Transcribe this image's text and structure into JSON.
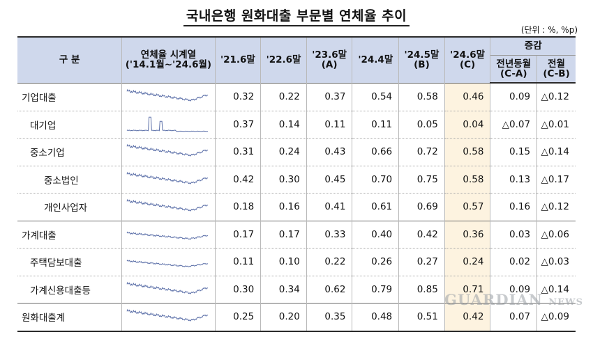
{
  "title": "국내은행 원화대출 부문별 연체율 추이",
  "unit": "(단위 : %, %p)",
  "headers": {
    "category": "구  분",
    "series_line1": "연체율 시계열",
    "series_line2": "('14.1월~'24.6월)",
    "p1": "'21.6말",
    "p2": "'22.6말",
    "p3_line1": "'23.6말",
    "p3_line2": "(A)",
    "p4": "'24.4말",
    "p5_line1": "'24.5말",
    "p5_line2": "(B)",
    "p6_line1": "'24.6말",
    "p6_line2": "(C)",
    "change": "증감",
    "yoy_line1": "전년동월",
    "yoy_line2": "(C-A)",
    "mom_line1": "전월",
    "mom_line2": "(C-B)"
  },
  "rows": [
    {
      "label": "기업대출",
      "values": [
        "0.32",
        "0.22",
        "0.37",
        "0.54",
        "0.58",
        "0.46"
      ],
      "yoy": "0.09",
      "mom": "△0.12"
    },
    {
      "label": "대기업",
      "values": [
        "0.37",
        "0.14",
        "0.11",
        "0.11",
        "0.05",
        "0.04"
      ],
      "yoy": "△0.07",
      "mom": "△0.01"
    },
    {
      "label": "중소기업",
      "values": [
        "0.31",
        "0.24",
        "0.43",
        "0.66",
        "0.72",
        "0.58"
      ],
      "yoy": "0.15",
      "mom": "△0.14"
    },
    {
      "label": "중소법인",
      "values": [
        "0.42",
        "0.30",
        "0.45",
        "0.70",
        "0.75",
        "0.58"
      ],
      "yoy": "0.13",
      "mom": "△0.17"
    },
    {
      "label": "개인사업자",
      "values": [
        "0.18",
        "0.16",
        "0.41",
        "0.61",
        "0.69",
        "0.57"
      ],
      "yoy": "0.16",
      "mom": "△0.12"
    },
    {
      "label": "가계대출",
      "values": [
        "0.17",
        "0.17",
        "0.33",
        "0.40",
        "0.42",
        "0.36"
      ],
      "yoy": "0.03",
      "mom": "△0.06"
    },
    {
      "label": "주택담보대출",
      "values": [
        "0.11",
        "0.10",
        "0.22",
        "0.26",
        "0.27",
        "0.24"
      ],
      "yoy": "0.02",
      "mom": "△0.03"
    },
    {
      "label": "가계신용대출등",
      "values": [
        "0.30",
        "0.34",
        "0.62",
        "0.79",
        "0.85",
        "0.71"
      ],
      "yoy": "0.09",
      "mom": "△0.14"
    },
    {
      "label": "원화대출계",
      "values": [
        "0.25",
        "0.20",
        "0.35",
        "0.48",
        "0.51",
        "0.42"
      ],
      "yoy": "0.07",
      "mom": "△0.09"
    }
  ],
  "sparkline_color": "#5b6fa8",
  "header_bg": "#cfd8ec",
  "highlight_bg": "#fdf3e0",
  "watermark": "GUARDIAN NEWS"
}
